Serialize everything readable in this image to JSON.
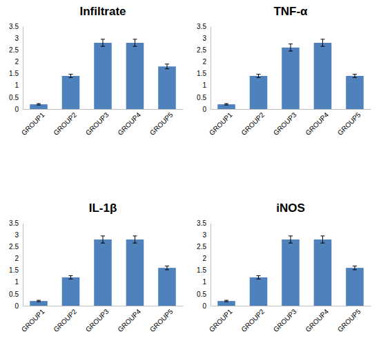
{
  "chart_data": [
    {
      "type": "bar",
      "title": "Infiltrate",
      "categories": [
        "GROUP1",
        "GROUP2",
        "GROUP3",
        "GROUP4",
        "GROUP5"
      ],
      "values": [
        0.2,
        1.4,
        2.8,
        2.8,
        1.8
      ],
      "errors": [
        0.03,
        0.07,
        0.15,
        0.15,
        0.1
      ],
      "color": "#4f81bd",
      "ylim": [
        0,
        3.5
      ],
      "yticks": [
        0,
        0.5,
        1,
        1.5,
        2,
        2.5,
        3,
        3.5
      ],
      "grid": false
    },
    {
      "type": "bar",
      "title": "TNF-α",
      "categories": [
        "GROUP1",
        "GROUP2",
        "GROUP3",
        "GROUP4",
        "GROUP5"
      ],
      "values": [
        0.2,
        1.4,
        2.6,
        2.8,
        1.4
      ],
      "errors": [
        0.03,
        0.07,
        0.15,
        0.15,
        0.07
      ],
      "color": "#4f81bd",
      "ylim": [
        0,
        3.5
      ],
      "yticks": [
        0,
        0.5,
        1,
        1.5,
        2,
        2.5,
        3,
        3.5
      ],
      "grid": false
    },
    {
      "type": "bar",
      "title": "IL-1β",
      "categories": [
        "GROUP1",
        "GROUP2",
        "GROUP3",
        "GROUP4",
        "GROUP5"
      ],
      "values": [
        0.2,
        1.2,
        2.8,
        2.8,
        1.6
      ],
      "errors": [
        0.03,
        0.07,
        0.15,
        0.15,
        0.08
      ],
      "color": "#4f81bd",
      "ylim": [
        0,
        3.5
      ],
      "yticks": [
        0,
        0.5,
        1,
        1.5,
        2,
        2.5,
        3,
        3.5
      ],
      "grid": false
    },
    {
      "type": "bar",
      "title": "iNOS",
      "categories": [
        "GROUP1",
        "GROUP2",
        "GROUP3",
        "GROUP4",
        "GROUP5"
      ],
      "values": [
        0.2,
        1.2,
        2.8,
        2.8,
        1.6
      ],
      "errors": [
        0.03,
        0.07,
        0.15,
        0.15,
        0.08
      ],
      "color": "#4f81bd",
      "ylim": [
        0,
        3.5
      ],
      "yticks": [
        0,
        0.5,
        1,
        1.5,
        2,
        2.5,
        3,
        3.5
      ],
      "grid": false
    }
  ]
}
